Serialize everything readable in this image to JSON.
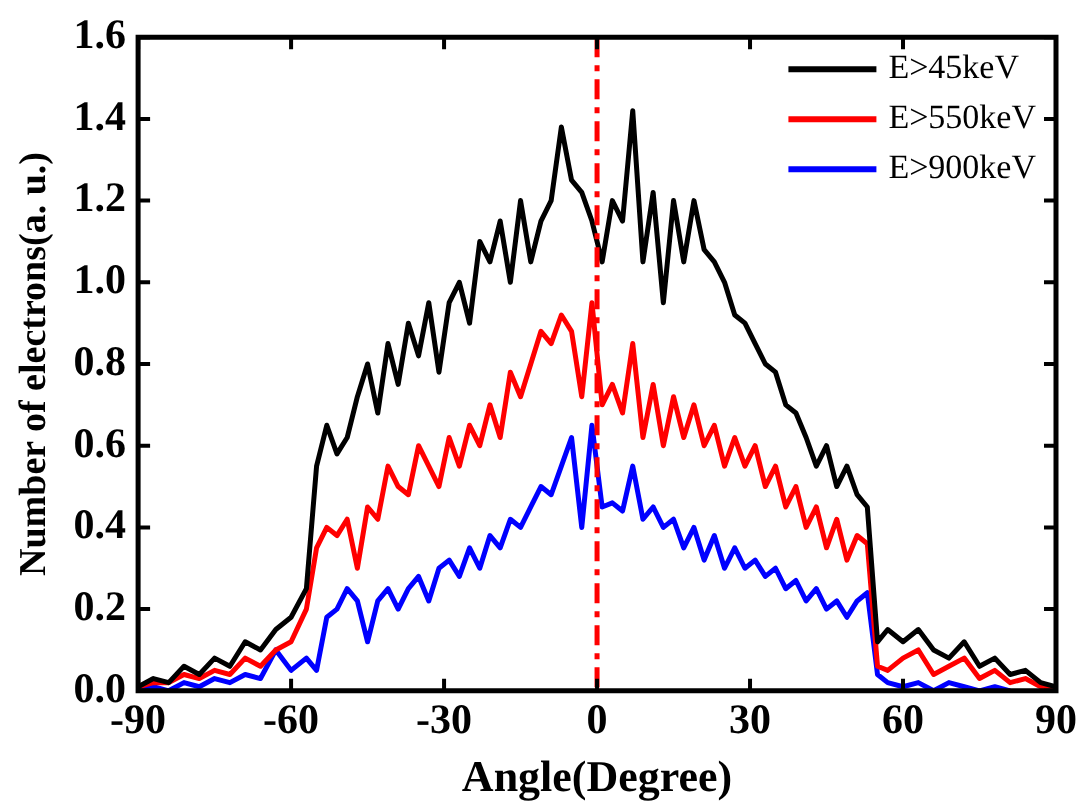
{
  "chart_data": {
    "type": "line",
    "xlabel": "Angle(Degree)",
    "ylabel": "Number of electrons(a. u.)",
    "x": [
      -90,
      -87,
      -84,
      -81,
      -78,
      -75,
      -72,
      -69,
      -66,
      -63,
      -60,
      -57,
      -55,
      -53,
      -51,
      -49,
      -47,
      -45,
      -43,
      -41,
      -39,
      -37,
      -35,
      -33,
      -31,
      -29,
      -27,
      -25,
      -23,
      -21,
      -19,
      -17,
      -15,
      -13,
      -11,
      -9,
      -7,
      -5,
      -3,
      -1,
      1,
      3,
      5,
      7,
      9,
      11,
      13,
      15,
      17,
      19,
      21,
      23,
      25,
      27,
      29,
      31,
      33,
      35,
      37,
      39,
      41,
      43,
      45,
      47,
      49,
      51,
      53,
      55,
      57,
      60,
      63,
      66,
      69,
      72,
      75,
      78,
      81,
      84,
      87,
      90
    ],
    "xlim": [
      -90,
      90
    ],
    "xticks": [
      -90,
      -60,
      -30,
      0,
      30,
      60,
      90
    ],
    "ylim": [
      0,
      1.6
    ],
    "yticks": [
      {
        "value": 0,
        "label": "0.0"
      },
      {
        "value": 0.2,
        "label": "0.2"
      },
      {
        "value": 0.4,
        "label": "0.4"
      },
      {
        "value": 0.6,
        "label": "0.6"
      },
      {
        "value": 0.8,
        "label": "0.8"
      },
      {
        "value": 1,
        "label": "1.0"
      },
      {
        "value": 1.2,
        "label": "1.2"
      },
      {
        "value": 1.4,
        "label": "1.4"
      },
      {
        "value": 1.6,
        "label": "1.6"
      }
    ],
    "grid": false,
    "legend": "top right",
    "marker": "none",
    "line_style": "solid",
    "ref_lines": [
      {
        "axis": "x",
        "value": 0,
        "color": "#ff0000",
        "line_style": "dashed"
      }
    ],
    "series": [
      {
        "name": "E>45keV",
        "color": "#000000",
        "values": [
          0.01,
          0.03,
          0.02,
          0.06,
          0.04,
          0.08,
          0.06,
          0.12,
          0.1,
          0.15,
          0.18,
          0.25,
          0.55,
          0.65,
          0.58,
          0.62,
          0.72,
          0.8,
          0.68,
          0.85,
          0.75,
          0.9,
          0.82,
          0.95,
          0.78,
          0.95,
          1.0,
          0.9,
          1.1,
          1.05,
          1.15,
          1.0,
          1.2,
          1.05,
          1.15,
          1.2,
          1.38,
          1.25,
          1.22,
          1.15,
          1.05,
          1.2,
          1.15,
          1.42,
          1.05,
          1.22,
          0.95,
          1.2,
          1.05,
          1.2,
          1.08,
          1.05,
          1.0,
          0.92,
          0.9,
          0.85,
          0.8,
          0.78,
          0.7,
          0.68,
          0.62,
          0.55,
          0.6,
          0.5,
          0.55,
          0.48,
          0.45,
          0.12,
          0.15,
          0.12,
          0.15,
          0.1,
          0.08,
          0.12,
          0.06,
          0.08,
          0.04,
          0.05,
          0.02,
          0.01
        ]
      },
      {
        "name": "E>550keV",
        "color": "#ff0000",
        "values": [
          0.01,
          0.02,
          0.02,
          0.04,
          0.03,
          0.05,
          0.04,
          0.08,
          0.06,
          0.1,
          0.12,
          0.2,
          0.35,
          0.4,
          0.38,
          0.42,
          0.3,
          0.45,
          0.42,
          0.55,
          0.5,
          0.48,
          0.6,
          0.55,
          0.5,
          0.62,
          0.55,
          0.65,
          0.6,
          0.7,
          0.62,
          0.78,
          0.72,
          0.8,
          0.88,
          0.85,
          0.92,
          0.88,
          0.72,
          0.95,
          0.7,
          0.75,
          0.68,
          0.85,
          0.62,
          0.75,
          0.6,
          0.72,
          0.62,
          0.7,
          0.6,
          0.65,
          0.55,
          0.62,
          0.55,
          0.6,
          0.5,
          0.55,
          0.45,
          0.5,
          0.4,
          0.45,
          0.35,
          0.42,
          0.32,
          0.38,
          0.36,
          0.06,
          0.05,
          0.08,
          0.1,
          0.04,
          0.06,
          0.08,
          0.03,
          0.05,
          0.02,
          0.03,
          0.01,
          0
        ]
      },
      {
        "name": "E>900keV",
        "color": "#0000ff",
        "values": [
          0,
          0.01,
          0,
          0.02,
          0.01,
          0.03,
          0.02,
          0.04,
          0.03,
          0.1,
          0.05,
          0.08,
          0.05,
          0.18,
          0.2,
          0.25,
          0.22,
          0.12,
          0.22,
          0.25,
          0.2,
          0.25,
          0.28,
          0.22,
          0.3,
          0.32,
          0.28,
          0.35,
          0.3,
          0.38,
          0.35,
          0.42,
          0.4,
          0.45,
          0.5,
          0.48,
          0.55,
          0.62,
          0.4,
          0.65,
          0.45,
          0.46,
          0.44,
          0.55,
          0.42,
          0.45,
          0.4,
          0.42,
          0.35,
          0.4,
          0.32,
          0.38,
          0.3,
          0.35,
          0.3,
          0.32,
          0.28,
          0.3,
          0.25,
          0.27,
          0.22,
          0.25,
          0.2,
          0.22,
          0.18,
          0.22,
          0.24,
          0.04,
          0.02,
          0.01,
          0.02,
          0,
          0.02,
          0.01,
          0,
          0.01,
          0,
          null,
          null,
          null
        ]
      }
    ]
  }
}
